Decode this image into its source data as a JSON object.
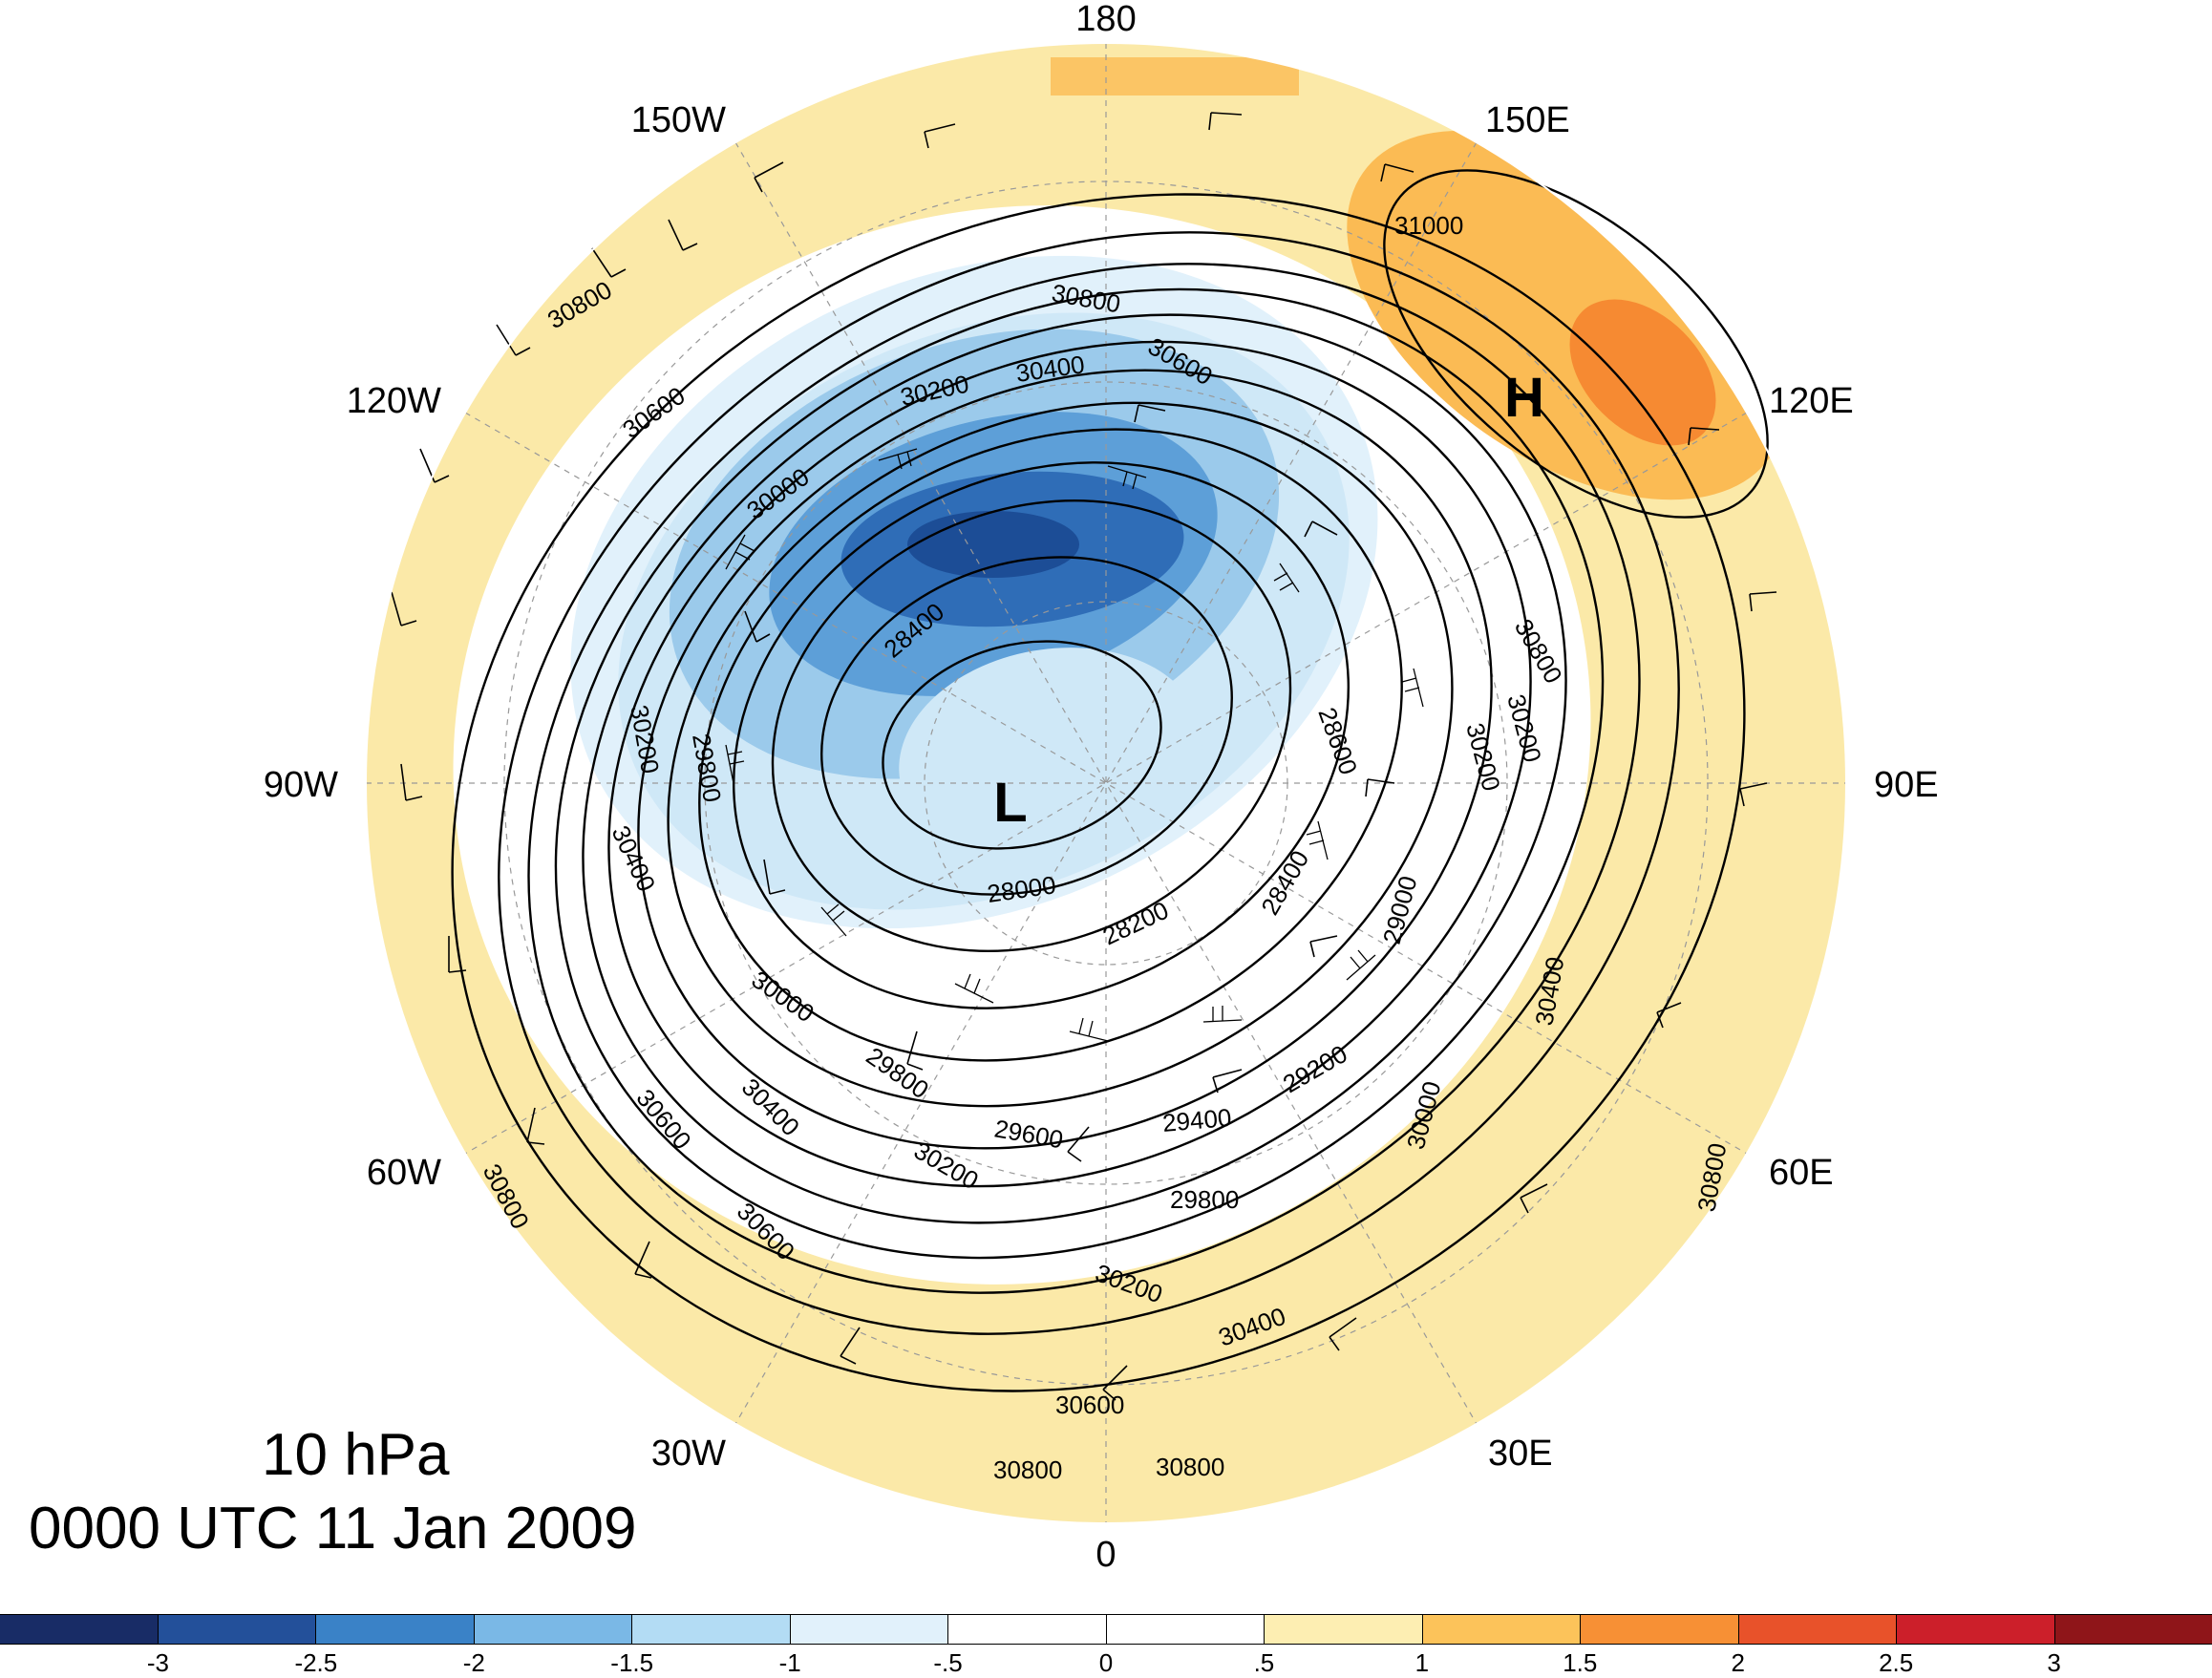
{
  "title": {
    "level": "10 hPa",
    "time": "0000 UTC 11 Jan 2009"
  },
  "longitude_labels": [
    "180",
    "150E",
    "120E",
    "90E",
    "60E",
    "30E",
    "0",
    "30W",
    "60W",
    "90W",
    "120W",
    "150W"
  ],
  "pressure_centers": [
    {
      "name": "low-center",
      "text": "L"
    },
    {
      "name": "high-center",
      "text": "H"
    }
  ],
  "contour_labels": [
    "31000",
    "30800",
    "30800",
    "30800",
    "30800",
    "30800",
    "30800",
    "30800",
    "30600",
    "30600",
    "30600",
    "30600",
    "30600",
    "30400",
    "30400",
    "30400",
    "30400",
    "30400",
    "30200",
    "30200",
    "30200",
    "30200",
    "30200",
    "30200",
    "30000",
    "30000",
    "30000",
    "29800",
    "29800",
    "29800",
    "29600",
    "29400",
    "29200",
    "29000",
    "28600",
    "28400",
    "28400",
    "28200",
    "28000"
  ],
  "colorbar": {
    "ticks": [
      "-3",
      "-2.5",
      "-2",
      "-1.5",
      "-1",
      "-.5",
      "0",
      ".5",
      "1",
      "1.5",
      "2",
      "2.5",
      "3"
    ],
    "colors": [
      "#182c66",
      "#23509a",
      "#3a82c7",
      "#7ab8e6",
      "#b3dcf4",
      "#e1f1fb",
      "#ffffff",
      "#ffffff",
      "#fdeeb2",
      "#fcc35a",
      "#f79035",
      "#e8522a",
      "#cc1f2a",
      "#8f1519"
    ]
  },
  "shading_colors": {
    "pale_yellow": "#fbe9a8",
    "orange": "#fbbb54",
    "dark_orange": "#f68a32",
    "pale_blue": "#cfe8f7",
    "light_blue": "#9bcaeb",
    "mid_blue": "#5d9fd8",
    "deep_blue": "#2f6db7",
    "darkest_blue": "#1c4d96"
  }
}
